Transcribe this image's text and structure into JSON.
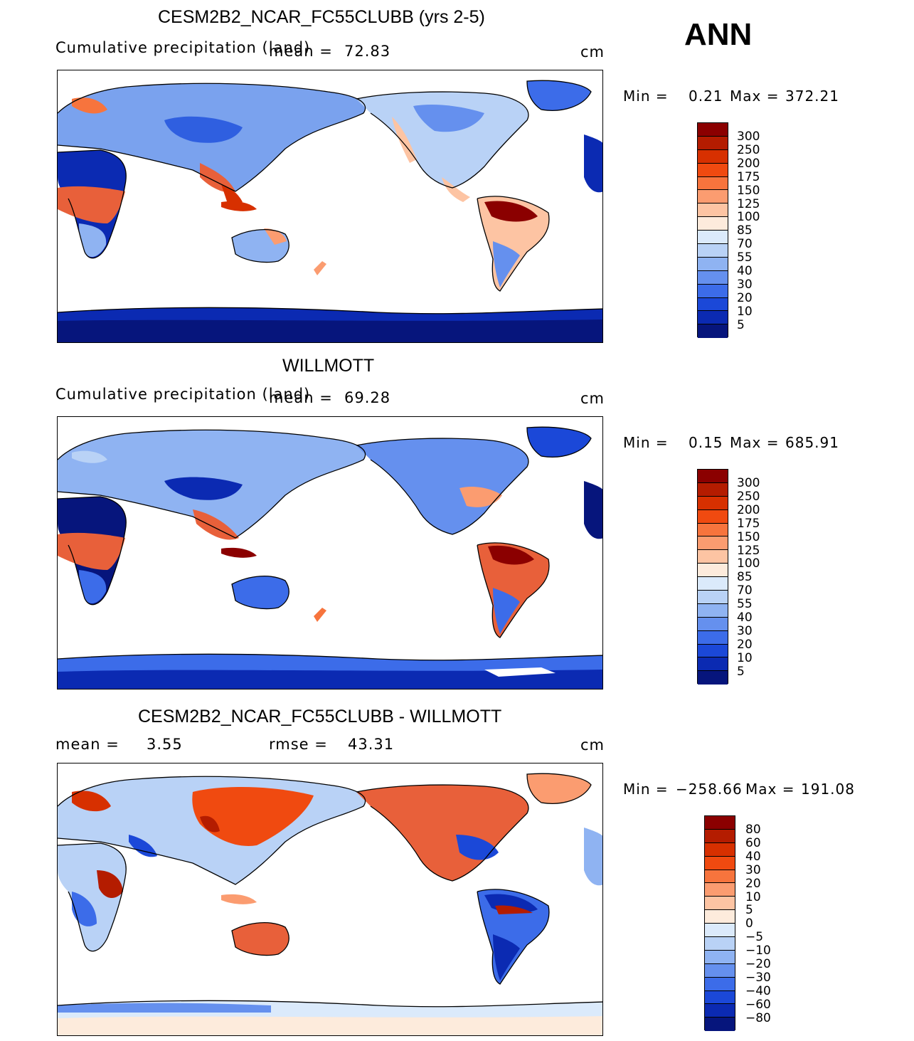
{
  "season": "ANN",
  "units": "cm",
  "panels": [
    {
      "title": "CESM2B2_NCAR_FC55CLUBB (yrs 2-5)",
      "subtitle": "Cumulative precipitation (land)",
      "mean_label": "mean =",
      "mean_value": "72.83",
      "min_label": "Min =",
      "min_value": "0.21",
      "max_label": "Max =",
      "max_value": "372.21",
      "map_alt": "Model annual precipitation over land"
    },
    {
      "title": "WILLMOTT",
      "subtitle": "Cumulative precipitation (land)",
      "mean_label": "mean =",
      "mean_value": "69.28",
      "min_label": "Min =",
      "min_value": "0.15",
      "max_label": "Max =",
      "max_value": "685.91",
      "map_alt": "Observed annual precipitation over land"
    },
    {
      "title": "CESM2B2_NCAR_FC55CLUBB - WILLMOTT",
      "mean_label": "mean =",
      "mean_value": "3.55",
      "rmse_label": "rmse =",
      "rmse_value": "43.31",
      "min_label": "Min =",
      "min_value": "−258.66",
      "max_label": "Max =",
      "max_value": "191.08",
      "map_alt": "Difference model minus observations"
    }
  ],
  "legend_abs": {
    "labels": [
      "300",
      "250",
      "200",
      "175",
      "150",
      "125",
      "100",
      "85",
      "70",
      "55",
      "40",
      "30",
      "20",
      "10",
      "5"
    ],
    "colors": [
      "#8b0000",
      "#b41c00",
      "#d73000",
      "#f04a10",
      "#f7743d",
      "#fb9c70",
      "#fdc4a3",
      "#fdebdc",
      "#dbeafb",
      "#b9d2f6",
      "#8fb3f2",
      "#6590ee",
      "#3c6ce9",
      "#1b48d8",
      "#0b2ab2",
      "#06157c"
    ]
  },
  "legend_diff": {
    "labels": [
      "80",
      "60",
      "40",
      "30",
      "20",
      "10",
      "5",
      "0",
      "−5",
      "−10",
      "−20",
      "−30",
      "−40",
      "−60",
      "−80"
    ],
    "colors": [
      "#8b0000",
      "#b41c00",
      "#d73000",
      "#f04a10",
      "#f7743d",
      "#fb9c70",
      "#fdc4a3",
      "#fdebdc",
      "#dbeafb",
      "#b9d2f6",
      "#8fb3f2",
      "#6590ee",
      "#3c6ce9",
      "#1b48d8",
      "#0b2ab2",
      "#06157c"
    ]
  }
}
